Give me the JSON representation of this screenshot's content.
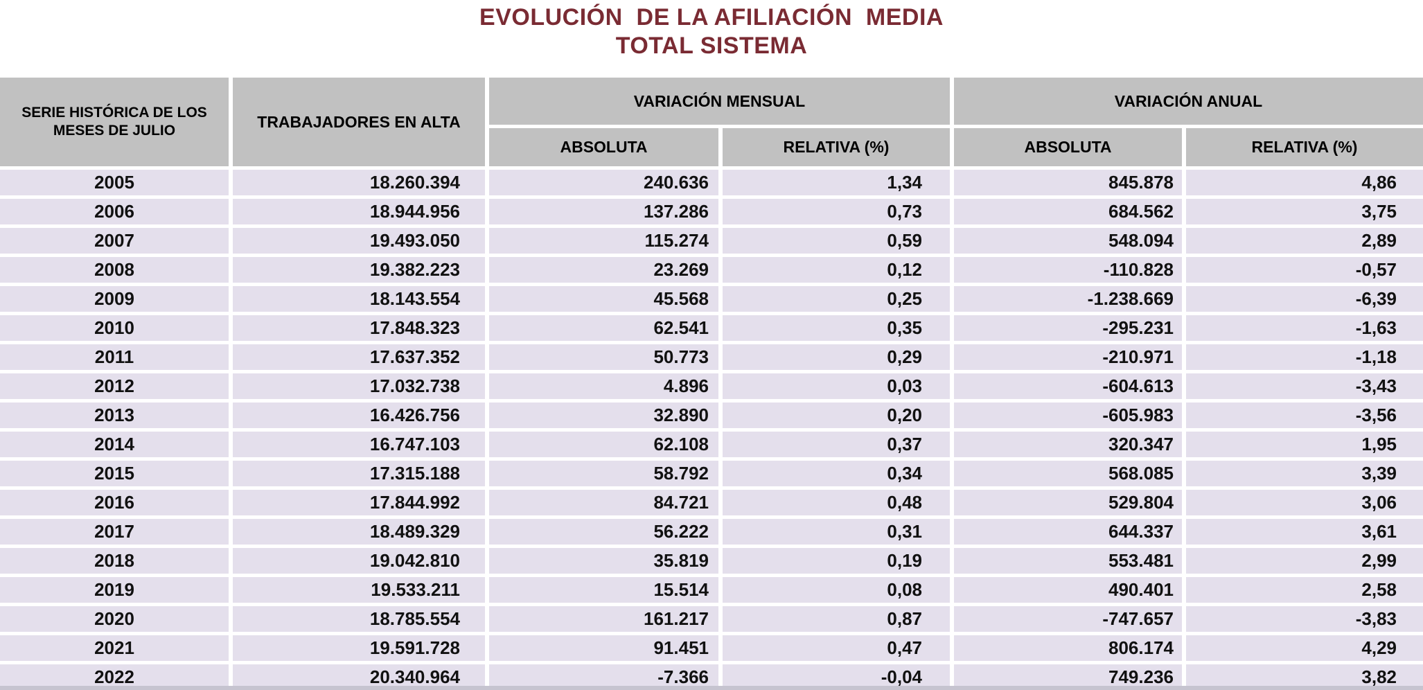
{
  "title": {
    "line1": "EVOLUCIÓN  DE LA AFILIACIÓN  MEDIA",
    "line2": "TOTAL SISTEMA"
  },
  "header": {
    "serie_line1": "SERIE HISTÓRICA DE LOS",
    "serie_line2": "MESES DE JULIO",
    "workers": "TRABAJADORES EN ALTA",
    "variation_monthly": "VARIACIÓN MENSUAL",
    "variation_annual": "VARIACIÓN ANUAL",
    "absolute": "ABSOLUTA",
    "relative": "RELATIVA (%)"
  },
  "colors": {
    "title_text": "#7A2B33",
    "header_bg": "#C1C1C1",
    "row_bg": "#E4DFEC",
    "grid_lines": "#FFFFFF",
    "data_text": "#111111",
    "bottom_edge": "#C6C4D0"
  },
  "chart_data": {
    "type": "table",
    "title": "EVOLUCIÓN DE LA AFILIACIÓN MEDIA — TOTAL SISTEMA",
    "columns": [
      "SERIE HISTÓRICA DE LOS MESES DE JULIO",
      "TRABAJADORES EN ALTA",
      "VARIACIÓN MENSUAL ABSOLUTA",
      "VARIACIÓN MENSUAL RELATIVA (%)",
      "VARIACIÓN ANUAL ABSOLUTA",
      "VARIACIÓN ANUAL RELATIVA (%)"
    ],
    "rows": [
      [
        "2005",
        "18.260.394",
        "240.636",
        "1,34",
        "845.878",
        "4,86"
      ],
      [
        "2006",
        "18.944.956",
        "137.286",
        "0,73",
        "684.562",
        "3,75"
      ],
      [
        "2007",
        "19.493.050",
        "115.274",
        "0,59",
        "548.094",
        "2,89"
      ],
      [
        "2008",
        "19.382.223",
        "23.269",
        "0,12",
        "-110.828",
        "-0,57"
      ],
      [
        "2009",
        "18.143.554",
        "45.568",
        "0,25",
        "-1.238.669",
        "-6,39"
      ],
      [
        "2010",
        "17.848.323",
        "62.541",
        "0,35",
        "-295.231",
        "-1,63"
      ],
      [
        "2011",
        "17.637.352",
        "50.773",
        "0,29",
        "-210.971",
        "-1,18"
      ],
      [
        "2012",
        "17.032.738",
        "4.896",
        "0,03",
        "-604.613",
        "-3,43"
      ],
      [
        "2013",
        "16.426.756",
        "32.890",
        "0,20",
        "-605.983",
        "-3,56"
      ],
      [
        "2014",
        "16.747.103",
        "62.108",
        "0,37",
        "320.347",
        "1,95"
      ],
      [
        "2015",
        "17.315.188",
        "58.792",
        "0,34",
        "568.085",
        "3,39"
      ],
      [
        "2016",
        "17.844.992",
        "84.721",
        "0,48",
        "529.804",
        "3,06"
      ],
      [
        "2017",
        "18.489.329",
        "56.222",
        "0,31",
        "644.337",
        "3,61"
      ],
      [
        "2018",
        "19.042.810",
        "35.819",
        "0,19",
        "553.481",
        "2,99"
      ],
      [
        "2019",
        "19.533.211",
        "15.514",
        "0,08",
        "490.401",
        "2,58"
      ],
      [
        "2020",
        "18.785.554",
        "161.217",
        "0,87",
        "-747.657",
        "-3,83"
      ],
      [
        "2021",
        "19.591.728",
        "91.451",
        "0,47",
        "806.174",
        "4,29"
      ],
      [
        "2022",
        "20.340.964",
        "-7.366",
        "-0,04",
        "749.236",
        "3,82"
      ]
    ]
  }
}
